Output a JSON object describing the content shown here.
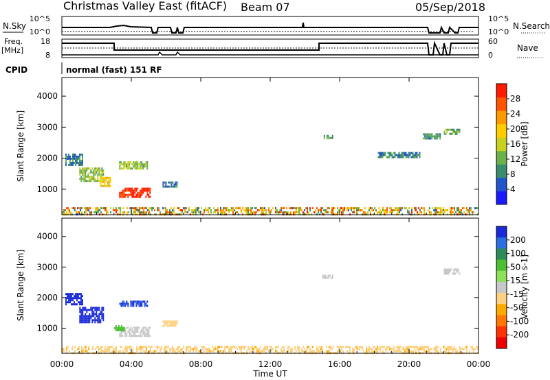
{
  "header": {
    "title": "Christmas Valley East (fitACF)",
    "beam": "Beam 07",
    "date": "05/Sep/2018"
  },
  "strip_panels": {
    "nsky_label": "N.Sky",
    "nsky_ticks": [
      "10^5",
      "10^0"
    ],
    "nsearch_label": "N.Search",
    "nsearch_ticks": [
      "10^5",
      "10^0"
    ],
    "freq_label_1": "Freq.",
    "freq_label_2": "[MHz]",
    "freq_ticks": [
      "18",
      "8"
    ],
    "nave_label": "Nave",
    "nave_ticks": [
      "60",
      "0"
    ],
    "cpid_label": "CPID",
    "cpid_value": "normal (fast) 151 RF"
  },
  "time_axis": {
    "label": "Time UT",
    "ticks": [
      "00:00",
      "04:00",
      "08:00",
      "12:00",
      "16:00",
      "20:00",
      "00:00"
    ]
  },
  "chart_data": [
    {
      "type": "heatmap",
      "panel": "power",
      "ylabel": "Slant Range [km]",
      "yticks": [
        1000,
        2000,
        3000,
        4000
      ],
      "ylim": [
        180,
        4600
      ],
      "xlim_hours": [
        0,
        24
      ],
      "colorbar": {
        "label": "Power [dB]",
        "ticks": [
          "4",
          "8",
          "12",
          "16",
          "20",
          "24",
          "28"
        ],
        "range": [
          0,
          32
        ],
        "colors": [
          "#1a1aff",
          "#2255cc",
          "#3a8c6e",
          "#6ab04c",
          "#c8d020",
          "#ffcc00",
          "#ff9900",
          "#ff5500",
          "#ff1a00"
        ]
      },
      "regions": [
        {
          "t": [
            0.2,
            1.2
          ],
          "r": [
            1800,
            2150
          ],
          "level": 8
        },
        {
          "t": [
            1.0,
            2.4
          ],
          "r": [
            1300,
            1700
          ],
          "level": 14
        },
        {
          "t": [
            2.2,
            2.8
          ],
          "r": [
            1100,
            1400
          ],
          "level": 20
        },
        {
          "t": [
            3.3,
            5.1
          ],
          "r": [
            780,
            1050
          ],
          "level": 30
        },
        {
          "t": [
            3.3,
            4.9
          ],
          "r": [
            1700,
            1900
          ],
          "level": 14
        },
        {
          "t": [
            5.8,
            6.6
          ],
          "r": [
            1100,
            1250
          ],
          "level": 8
        },
        {
          "t": [
            15.0,
            15.6
          ],
          "r": [
            2650,
            2750
          ],
          "level": 12
        },
        {
          "t": [
            18.2,
            20.6
          ],
          "r": [
            2050,
            2200
          ],
          "level": 8
        },
        {
          "t": [
            20.8,
            21.8
          ],
          "r": [
            2650,
            2800
          ],
          "level": 10
        },
        {
          "t": [
            22.0,
            22.9
          ],
          "r": [
            2800,
            2950
          ],
          "level": 12
        },
        {
          "t": [
            0,
            24
          ],
          "r": [
            200,
            420
          ],
          "level": 18
        }
      ]
    },
    {
      "type": "heatmap",
      "panel": "velocity",
      "ylabel": "Slant Range [km]",
      "yticks": [
        1000,
        2000,
        3000,
        4000
      ],
      "ylim": [
        180,
        4600
      ],
      "xlim_hours": [
        0,
        24
      ],
      "colorbar": {
        "label": "Velocity [m s-1]",
        "ticks": [
          "200",
          "100",
          "50",
          "15",
          "-15",
          "-50",
          "-100",
          "-200"
        ],
        "colors": [
          "#1a2ad9",
          "#2a6ee0",
          "#2e8b57",
          "#4cbf30",
          "#8de05a",
          "#c8c8c8",
          "#ffd080",
          "#ffaa00",
          "#ff7700",
          "#ff3300",
          "#ee0000"
        ]
      },
      "regions": [
        {
          "t": [
            0.2,
            1.2
          ],
          "r": [
            1800,
            2150
          ],
          "v": 220
        },
        {
          "t": [
            1.0,
            2.4
          ],
          "r": [
            1200,
            1700
          ],
          "v": 210
        },
        {
          "t": [
            3.3,
            4.9
          ],
          "r": [
            1700,
            1900
          ],
          "v": 200
        },
        {
          "t": [
            3.3,
            5.1
          ],
          "r": [
            780,
            1050
          ],
          "v": 0
        },
        {
          "t": [
            3.0,
            3.6
          ],
          "r": [
            900,
            1100
          ],
          "v": 30
        },
        {
          "t": [
            5.8,
            6.6
          ],
          "r": [
            1100,
            1250
          ],
          "v": -40
        },
        {
          "t": [
            15.0,
            15.6
          ],
          "r": [
            2650,
            2750
          ],
          "v": 0
        },
        {
          "t": [
            22.0,
            22.9
          ],
          "r": [
            2800,
            2950
          ],
          "v": 0
        },
        {
          "t": [
            0,
            24
          ],
          "r": [
            200,
            420
          ],
          "v": -40
        }
      ]
    }
  ]
}
